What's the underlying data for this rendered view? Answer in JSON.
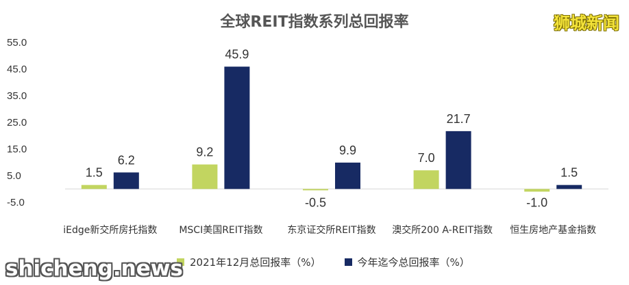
{
  "watermarks": {
    "top_right": "狮城新闻",
    "bottom_left": "shicheng.news"
  },
  "chart_data": {
    "type": "bar",
    "title": "全球REIT指数系列总回报率",
    "categories": [
      "iEdge新交所房托指数",
      "MSCI美国REIT指数",
      "东京证交所REIT指数",
      "澳交所200 A-REIT指数",
      "恒生房地产基金指数"
    ],
    "series": [
      {
        "name": "2021年12月总回报率（%）",
        "values": [
          1.5,
          9.2,
          -0.5,
          7.0,
          -1.0
        ],
        "color": "#c2d560"
      },
      {
        "name": "今年迄今总回报率（%）",
        "values": [
          6.2,
          45.9,
          9.9,
          21.7,
          1.5
        ],
        "color": "#172a63"
      }
    ],
    "value_labels": [
      [
        "1.5",
        "9.2",
        "-0.5",
        "7.0",
        "-1.0"
      ],
      [
        "6.2",
        "45.9",
        "9.9",
        "21.7",
        "1.5"
      ]
    ],
    "yticks": [
      "55.0",
      "45.0",
      "35.0",
      "25.0",
      "15.0",
      "5.0",
      "-5.0"
    ],
    "ytick_values": [
      55,
      45,
      35,
      25,
      15,
      5,
      -5
    ],
    "ylim": [
      -5,
      55
    ],
    "xlabel": "",
    "ylabel": "",
    "grid": false,
    "legend": "bottom"
  }
}
